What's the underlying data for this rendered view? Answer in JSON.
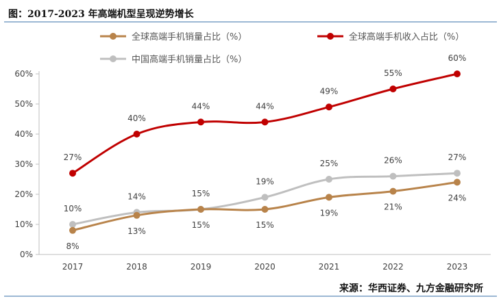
{
  "header": {
    "title": "图：2017-2023 年高端机型呈现逆势增长"
  },
  "footer": {
    "source": "来源：华西证券、九方金融研究所"
  },
  "chart_data": {
    "type": "line",
    "title": "2017-2023 年高端机型呈现逆势增长",
    "categories": [
      "2017",
      "2018",
      "2019",
      "2020",
      "2021",
      "2022",
      "2023"
    ],
    "ylim": [
      0,
      60
    ],
    "yticks": [
      0,
      10,
      20,
      30,
      40,
      50,
      60
    ],
    "ytick_labels": [
      "0%",
      "10%",
      "20%",
      "30%",
      "40%",
      "50%",
      "60%"
    ],
    "grid": false,
    "legend_position": "top",
    "series": [
      {
        "name": "全球高端手机销量占比（%）",
        "color": "#b8834a",
        "values": [
          8,
          13,
          15,
          15,
          19,
          21,
          24
        ],
        "labels": [
          "8%",
          "13%",
          "15%",
          "15%",
          "19%",
          "21%",
          "24%"
        ],
        "label_side": "below"
      },
      {
        "name": "全球高端手机收入占比（%）",
        "color": "#c00000",
        "values": [
          27,
          40,
          44,
          44,
          49,
          55,
          60
        ],
        "labels": [
          "27%",
          "40%",
          "44%",
          "44%",
          "49%",
          "55%",
          "60%"
        ],
        "label_side": "above"
      },
      {
        "name": "中国高端手机销量占比（%）",
        "color": "#bfbfbf",
        "values": [
          10,
          14,
          15,
          19,
          25,
          26,
          27
        ],
        "labels": [
          "10%",
          "14%",
          "15%",
          "19%",
          "25%",
          "26%",
          "27%"
        ],
        "label_side": "above"
      }
    ]
  }
}
